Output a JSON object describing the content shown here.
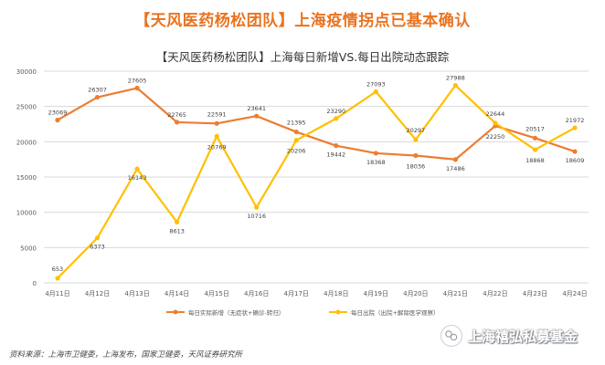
{
  "headline": "【天风医药杨松团队】上海疫情拐点已基本确认",
  "chart_data": {
    "type": "line",
    "title": "【天风医药杨松团队】上海每日新增VS.每日出院动态跟踪",
    "categories": [
      "4月11日",
      "4月12日",
      "4月13日",
      "4月14日",
      "4月15日",
      "4月16日",
      "4月17日",
      "4月18日",
      "4月19日",
      "4月20日",
      "4月21日",
      "4月22日",
      "4月23日",
      "4月24日"
    ],
    "ylim": [
      0,
      30000
    ],
    "yticks": [
      0,
      5000,
      10000,
      15000,
      20000,
      25000,
      30000
    ],
    "grid": true,
    "legend_position": "bottom",
    "series": [
      {
        "name": "每日实际新增（无症状+确诊-转归）",
        "color": "#ed7d31",
        "values": [
          23069,
          26307,
          27605,
          22765,
          22591,
          23641,
          21395,
          19442,
          18368,
          18036,
          17486,
          22250,
          20517,
          18609
        ]
      },
      {
        "name": "每日出院（出院+解除医学观察）",
        "color": "#ffc000",
        "values": [
          653,
          6373,
          16143,
          8613,
          20769,
          10716,
          20206,
          23290,
          27093,
          20297,
          27988,
          22644,
          18868,
          21972
        ]
      }
    ]
  },
  "source": "资料来源：上海市卫健委，上海发布，国家卫健委，天风证券研究所",
  "watermark": "上海禧弘私募基金"
}
